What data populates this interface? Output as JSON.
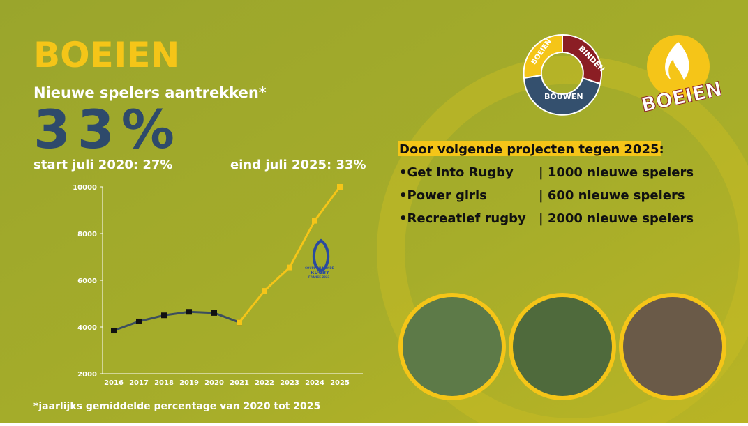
{
  "header": {
    "title": "BOEIEN",
    "subtitle": "Nieuwe spelers aantrekken*",
    "big_value": "33%",
    "start": "start juli 2020: 27%",
    "end": "eind juli 2025: 33%"
  },
  "projects": {
    "heading": "Door volgende projecten tegen 2025:",
    "rows": [
      [
        "•Get into Rugby",
        "| 1000 nieuwe spelers"
      ],
      [
        "•Power girls",
        "| 600 nieuwe spelers"
      ],
      [
        "•Recreatief rugby",
        "| 2000  nieuwe spelers"
      ]
    ]
  },
  "logos": {
    "ring": [
      "BOEIEN",
      "BINDEN",
      "BOUWEN"
    ],
    "flame": "BOEIEN",
    "rwc": [
      "COUPE DU MONDE",
      "RUGBY",
      "FRANCE 2023"
    ]
  },
  "footnote": "*jaarlijks gemiddelde percentage van 2020 tot 2025",
  "chart_data": {
    "type": "line",
    "categories": [
      "2016",
      "2017",
      "2018",
      "2019",
      "2020",
      "2021",
      "2022",
      "2023",
      "2024",
      "2025"
    ],
    "series": [
      {
        "color": "#3c4e5e",
        "values": [
          3850,
          4240,
          4500,
          4650,
          4600,
          4200,
          null,
          null,
          null,
          null
        ]
      },
      {
        "color": "#f5c518",
        "values": [
          null,
          null,
          null,
          null,
          null,
          4200,
          5550,
          6550,
          8550,
          10000
        ]
      }
    ],
    "ylim": [
      2000,
      10000
    ],
    "yticks": [
      2000,
      4000,
      6000,
      8000,
      10000
    ]
  }
}
